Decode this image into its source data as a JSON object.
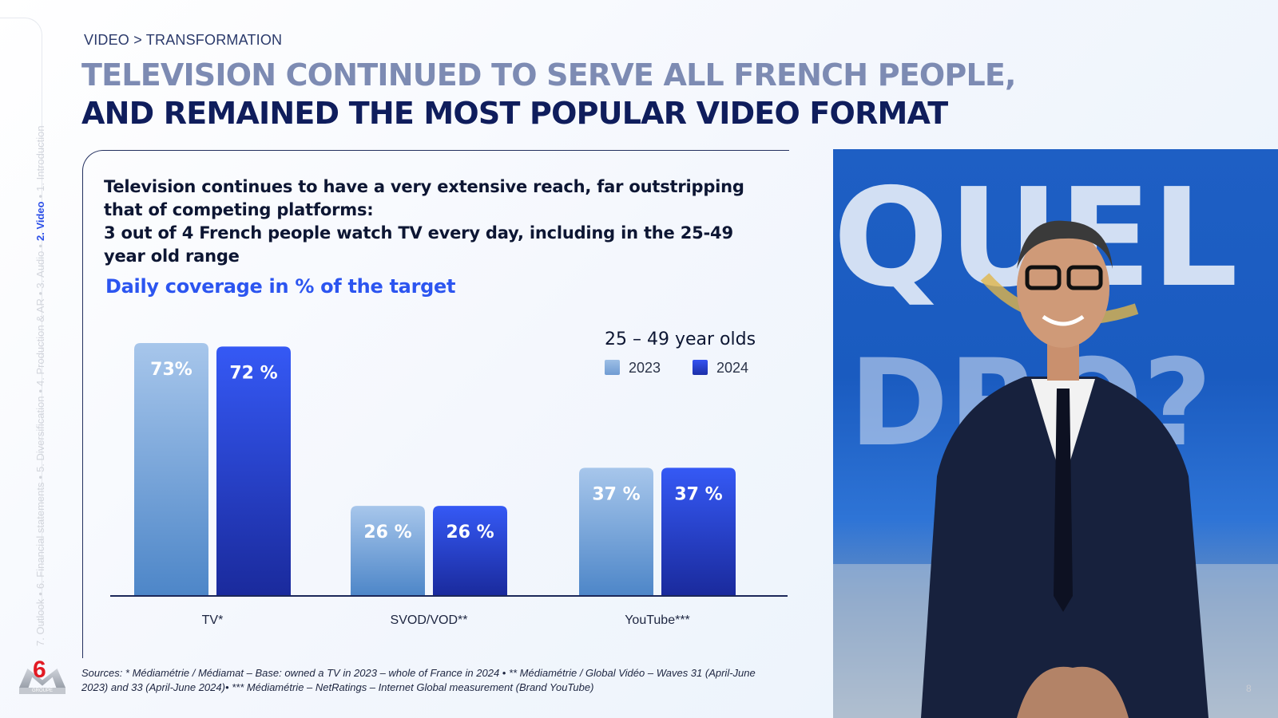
{
  "side_nav": {
    "items": [
      {
        "label": "7. Outlook",
        "active": false
      },
      {
        "label": "6. Financial statements",
        "active": false
      },
      {
        "label": "5. Diversification",
        "active": false
      },
      {
        "label": "4. Production & AR",
        "active": false
      },
      {
        "label": "3. Audio",
        "active": false
      },
      {
        "label": "2. Video",
        "active": true
      },
      {
        "label": "1. Introduction",
        "active": false
      }
    ],
    "separator": "•"
  },
  "logo": {
    "number": "6",
    "text": "GROUPE"
  },
  "breadcrumb": "VIDEO > TRANSFORMATION",
  "title": {
    "line1": "TELEVISION CONTINUED TO SERVE ALL FRENCH PEOPLE,",
    "line2": "AND REMAINED THE MOST POPULAR VIDEO FORMAT"
  },
  "headline": {
    "line1": "Television continues to have a very extensive reach, far outstripping",
    "line2": "that of competing platforms:",
    "line3": "3 out of 4 French people watch TV every day, including in the 25-49",
    "line4": "year old range"
  },
  "chart_data": {
    "type": "bar",
    "title": "Daily coverage in % of the target",
    "legend_title": "25 – 49 year olds",
    "legend_position": "top-right",
    "grid": false,
    "categories": [
      "TV*",
      "SVOD/VOD**",
      "YouTube***"
    ],
    "series": [
      {
        "name": "2023",
        "values": [
          73,
          26,
          37
        ],
        "labels": [
          "73%",
          "26 %",
          "37 %"
        ],
        "color": "#9dbfe6"
      },
      {
        "name": "2024",
        "values": [
          72,
          26,
          37
        ],
        "labels": [
          "72 %",
          "26 %",
          "37 %"
        ],
        "color": "#2c4fe8"
      }
    ],
    "ylim": [
      0,
      100
    ],
    "xlabel": "",
    "ylabel": ""
  },
  "sources": "Sources: * Médiamétrie / Médiamat – Base: owned a TV in 2023 – whole of France in 2024 • ** Médiamétrie / Global Vidéo – Waves 31 (April-June 2023) and 33 (April-June 2024)• *** Médiamétrie – NetRatings – Internet Global measurement (Brand YouTube)",
  "page_number": "8",
  "colors": {
    "accent": "#2c55f0",
    "navy": "#0f1d5c",
    "muted_title": "#7d8bb3"
  }
}
